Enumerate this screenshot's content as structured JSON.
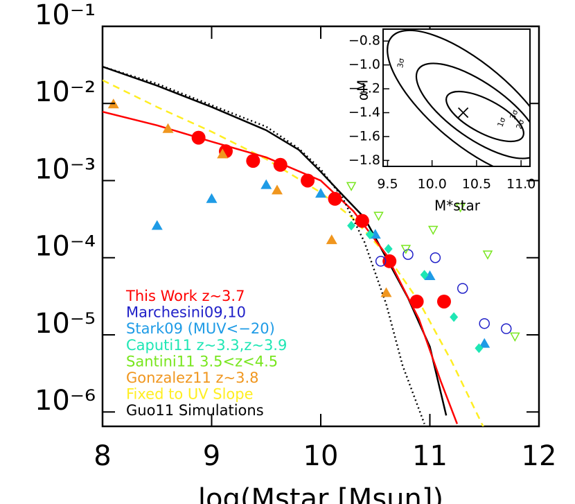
{
  "chart_data": {
    "type": "scatter",
    "xlabel": "log(Mstar [Msun])",
    "xlim": [
      8,
      12
    ],
    "xticks": [
      8,
      9,
      10,
      11,
      12
    ],
    "ylim": [
      6.5e-07,
      0.1
    ],
    "log_y": true,
    "yticks": [
      {
        "value": 0.1,
        "label": "10⁻¹"
      },
      {
        "value": 0.01,
        "label": "10⁻²"
      },
      {
        "value": 0.001,
        "label": "10⁻³"
      },
      {
        "value": 0.0001,
        "label": "10⁻⁴"
      },
      {
        "value": 1e-05,
        "label": "10⁻⁵"
      },
      {
        "value": 1e-06,
        "label": "10⁻⁶"
      }
    ],
    "legend": "lower left",
    "series": [
      {
        "name": "This Work z~3.7",
        "color": "#ff0000",
        "marker": "circle",
        "x": [
          8.88,
          9.13,
          9.38,
          9.63,
          9.88,
          10.13,
          10.38,
          10.63,
          10.88,
          11.13
        ],
        "values": [
          0.0036,
          0.0024,
          0.0018,
          0.0016,
          0.001,
          0.00058,
          0.0003,
          9e-05,
          2.7e-05,
          2.7e-05
        ]
      },
      {
        "name": "Marchesini09,10",
        "color": "#2020c8",
        "marker": "open-circle",
        "x": [
          10.55,
          10.8,
          11.05,
          11.3,
          11.5,
          11.7
        ],
        "values": [
          9e-05,
          0.00011,
          0.0001,
          4e-05,
          1.4e-05,
          1.2e-05
        ]
      },
      {
        "name": "Stark09 (MUV<−20)",
        "color": "#1e9be6",
        "marker": "triangle",
        "x": [
          8.5,
          9.0,
          9.5,
          10.0,
          10.5,
          11.0,
          11.5
        ],
        "values": [
          0.00026,
          0.00058,
          0.00088,
          0.00068,
          0.0002,
          5.8e-05,
          7.7e-06
        ]
      },
      {
        "name": "Caputi11 z~3.3,z~3.9",
        "color": "#1ee6b4",
        "marker": "diamond",
        "x": [
          10.28,
          10.45,
          10.62,
          10.95,
          11.22,
          11.45
        ],
        "values": [
          0.00026,
          0.0002,
          0.00013,
          6e-05,
          1.7e-05,
          6.7e-06
        ]
      },
      {
        "name": "Santini11 3.5<z<4.5",
        "color": "#78e61e",
        "marker": "open-triangle-down",
        "x": [
          10.28,
          10.53,
          10.78,
          11.03,
          11.28,
          11.53,
          11.78
        ],
        "values": [
          0.00085,
          0.00035,
          0.00013,
          0.00023,
          0.00045,
          0.00011,
          9.5e-06
        ]
      },
      {
        "name": "Gonzalez11 z~3.8",
        "color": "#f0961e",
        "marker": "triangle",
        "x": [
          8.1,
          8.6,
          9.1,
          9.6,
          10.1,
          10.6
        ],
        "values": [
          0.0098,
          0.0047,
          0.0022,
          0.00075,
          0.00017,
          3.5e-05
        ]
      },
      {
        "name": "Fixed to UV Slope",
        "color": "#ffee22",
        "marker": "dash",
        "x": [
          8.0,
          8.5,
          9.0,
          9.5,
          10.0,
          10.3,
          10.6,
          10.9,
          11.2,
          11.5
        ],
        "values": [
          0.02,
          0.009,
          0.0043,
          0.0019,
          0.0007,
          0.00032,
          0.00011,
          2.7e-05,
          4.5e-06,
          6e-07
        ]
      },
      {
        "name": "Guo11 Simulations",
        "color": "#000000",
        "marker": "solid",
        "x": [
          8.0,
          8.5,
          9.0,
          9.5,
          9.8,
          10.0,
          10.2,
          10.4,
          10.6,
          10.8,
          11.0,
          11.15
        ],
        "values": [
          0.03,
          0.017,
          0.009,
          0.0045,
          0.0025,
          0.0013,
          0.00065,
          0.00033,
          0.0001,
          3e-05,
          7e-06,
          9e-07
        ]
      },
      {
        "color": "#ff0000",
        "marker": "solid",
        "x": [
          8.0,
          8.5,
          9.0,
          9.5,
          10.0,
          10.3,
          10.6,
          10.9,
          11.1,
          11.25
        ],
        "values": [
          0.0078,
          0.0052,
          0.0032,
          0.002,
          0.001,
          0.0004,
          0.00011,
          1.6e-05,
          2.5e-06,
          7e-07
        ]
      },
      {
        "color": "#000000",
        "marker": "dotted",
        "x": [
          8.0,
          8.5,
          9.0,
          9.5,
          9.8,
          10.0,
          10.2,
          10.4,
          10.6,
          10.75,
          10.95
        ],
        "values": [
          0.03,
          0.018,
          0.0095,
          0.005,
          0.0026,
          0.0014,
          0.0006,
          0.00016,
          2.5e-05,
          4e-06,
          7e-07
        ]
      }
    ],
    "inset": {
      "xlabel": "M*star",
      "ylabel": "αM",
      "xlim": [
        9.45,
        11.1
      ],
      "ylim": [
        -1.85,
        -0.7
      ],
      "xticks": [
        {
          "value": 9.5,
          "label": "9.5"
        },
        {
          "value": 10.0,
          "label": "10.0"
        },
        {
          "value": 10.5,
          "label": "10.5"
        },
        {
          "value": 11.0,
          "label": "11.0"
        }
      ],
      "yticks": [
        {
          "value": -0.8,
          "label": "−0.8"
        },
        {
          "value": -1.0,
          "label": "−1.0"
        },
        {
          "value": -1.2,
          "label": "−1.2"
        },
        {
          "value": -1.4,
          "label": "−1.4"
        },
        {
          "value": -1.6,
          "label": "−1.6"
        },
        {
          "value": -1.8,
          "label": "−1.8"
        }
      ],
      "best_fit": [
        10.35,
        -1.4
      ],
      "contour_labels": [
        "1σ",
        "2σ",
        "3σ"
      ]
    }
  }
}
